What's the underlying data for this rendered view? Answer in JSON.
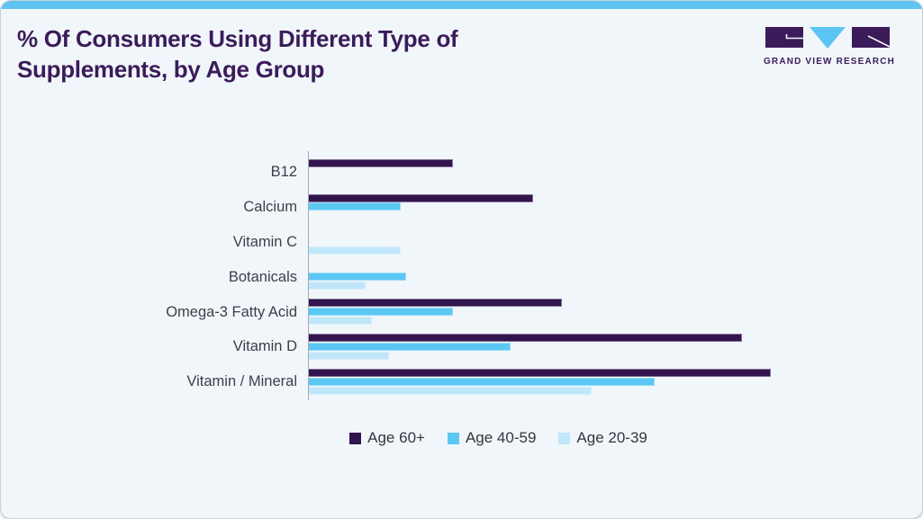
{
  "card": {
    "accent_bar_color": "#5fc4ef",
    "background": "#f0f6fa"
  },
  "header": {
    "title_lines": [
      "% Of Consumers Using Different Type of",
      "Supplements, by Age Group"
    ],
    "title_color": "#3b1b59"
  },
  "logo": {
    "brand": "GRAND VIEW RESEARCH",
    "purple": "#3b1b59",
    "blue": "#5bc6f3"
  },
  "chart_data": {
    "type": "bar",
    "orientation": "horizontal",
    "title": "% Of Consumers Using Different Type of Supplements, by Age Group",
    "categories": [
      "B12",
      "Calcium",
      "Vitamin C",
      "Botanicals",
      "Omega-3 Fatty Acid",
      "Vitamin D",
      "Vitamin / Mineral"
    ],
    "series": [
      {
        "name": "Age 60+",
        "color": "#32154e",
        "values": [
          25,
          39,
          null,
          null,
          44,
          75,
          80
        ]
      },
      {
        "name": "Age 40-59",
        "color": "#5bc7f3",
        "values": [
          null,
          16,
          null,
          17,
          25,
          35,
          60
        ]
      },
      {
        "name": "Age 20-39",
        "color": "#c0e7f9",
        "values": [
          null,
          null,
          16,
          10,
          11,
          14,
          49
        ]
      }
    ],
    "xlim": [
      0,
      100
    ],
    "values_unit": "%",
    "x_axis_labels_visible": false,
    "gridlines": false,
    "legend_position": "bottom"
  }
}
